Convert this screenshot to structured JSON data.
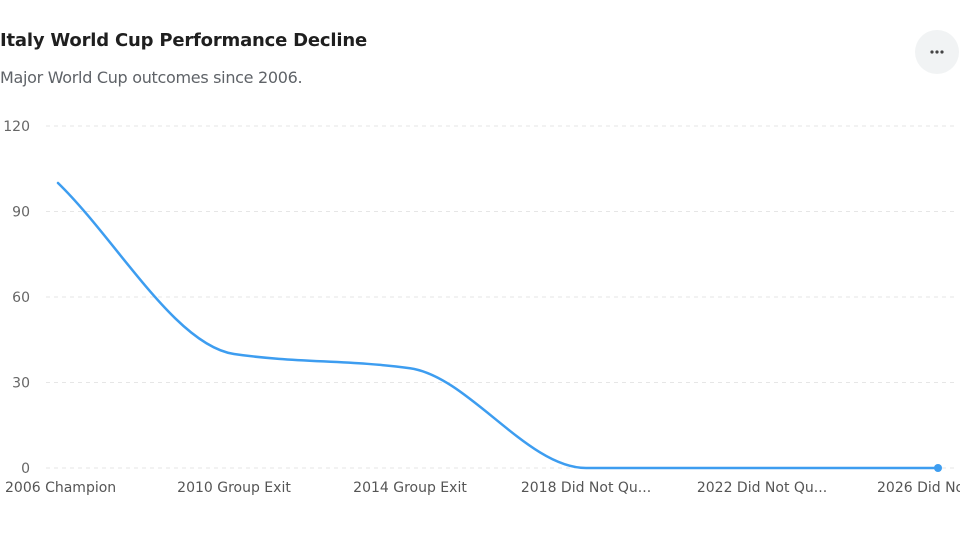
{
  "header": {
    "title": "Italy World Cup Performance Decline",
    "subtitle": "Major World Cup outcomes since 2006."
  },
  "menu": {
    "icon": "more-horizontal-icon"
  },
  "colors": {
    "line": "#3d9df0",
    "grid": "#e6e6e6"
  },
  "chart_data": {
    "type": "line",
    "title": "Italy World Cup Performance Decline",
    "subtitle": "Major World Cup outcomes since 2006.",
    "categories": [
      "2006 Champion",
      "2010 Group Exit",
      "2014 Group Exit",
      "2018 Did Not Qu...",
      "2022 Did Not Qu...",
      "2026 Did No"
    ],
    "values": [
      100,
      40,
      35,
      0,
      0,
      0
    ],
    "ylim": [
      0,
      120
    ],
    "yticks": [
      0,
      30,
      60,
      90,
      120
    ],
    "xlabel": "",
    "ylabel": "",
    "grid": true,
    "legend": "none"
  }
}
